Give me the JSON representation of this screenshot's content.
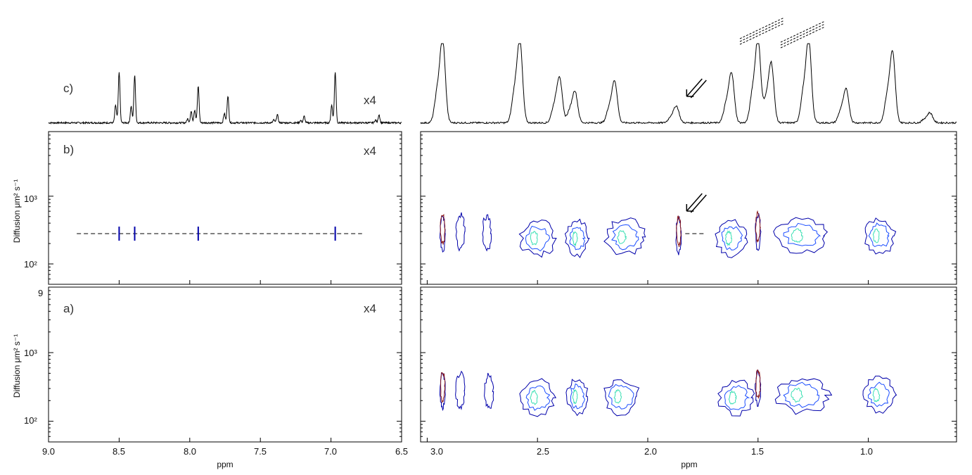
{
  "chart_data": {
    "type": "contour",
    "colors": {
      "axes": "#000000",
      "spectrum": "#000000",
      "contour_outer": "#0000aa",
      "contour_mid": "#1e50ff",
      "contour_inner": "#3ce0b4",
      "contour_peak": "#8b1a1a",
      "dashed": "#000000"
    },
    "panels": {
      "c": {
        "label": "c)",
        "scale_note": "x4",
        "description_type": "1D spectrum"
      },
      "b": {
        "label": "b)",
        "scale_note": "x4",
        "ylabel": "Diffusion μm² s⁻¹",
        "y_ticks": [
          "10³",
          "10²"
        ]
      },
      "a": {
        "label": "a)",
        "scale_note": "x4",
        "ylabel": "Diffusion μm² s⁻¹",
        "y_ticks": [
          "9",
          "10³",
          "10²"
        ]
      }
    },
    "left_region": {
      "xlim": [
        9.0,
        6.5
      ],
      "x_ticks": [
        "9.0",
        "8.5",
        "8.0",
        "7.5",
        "7.0",
        "6.5"
      ],
      "x_tick_values": [
        9.0,
        8.5,
        8.0,
        7.5,
        7.0,
        6.5
      ],
      "xlabel": "ppm",
      "peaks_ppm": [
        8.5,
        8.39,
        7.99,
        7.94,
        7.73,
        7.38,
        7.19,
        6.97,
        6.66
      ],
      "peak_heights": [
        0.62,
        0.58,
        0.14,
        0.45,
        0.33,
        0.1,
        0.08,
        0.62,
        0.1
      ],
      "dashed_diffusion": 280,
      "dashed_xrange": [
        8.8,
        6.78
      ]
    },
    "right_region": {
      "xlim": [
        3.03,
        0.6
      ],
      "x_ticks": [
        "3.0",
        "2.5",
        "2.0",
        "1.5",
        "1.0"
      ],
      "x_tick_values": [
        3.0,
        2.5,
        2.0,
        1.5,
        1.0
      ],
      "xlabel": "ppm",
      "peaks_ppm": [
        2.93,
        2.58,
        2.4,
        2.33,
        2.15,
        1.87,
        1.62,
        1.5,
        1.44,
        1.27,
        1.1,
        0.89,
        0.72
      ],
      "peak_heights": [
        1.0,
        1.0,
        0.55,
        0.38,
        0.5,
        0.2,
        0.6,
        1.0,
        0.72,
        1.0,
        0.4,
        0.85,
        0.12
      ],
      "arrow_ppm": 1.83,
      "dashed_diffusion": 280,
      "dashed_xrange": [
        1.83,
        1.74
      ],
      "diffusion_ylim": [
        50,
        9000
      ],
      "contours_b": [
        {
          "ppm": 2.93,
          "diff": 280,
          "spread": 0.012
        },
        {
          "ppm": 2.85,
          "diff": 300,
          "spread": 0.02
        },
        {
          "ppm": 2.73,
          "diff": 280,
          "spread": 0.02
        },
        {
          "ppm": 2.5,
          "diff": 240,
          "spread": 0.08
        },
        {
          "ppm": 2.32,
          "diff": 240,
          "spread": 0.05
        },
        {
          "ppm": 2.1,
          "diff": 250,
          "spread": 0.09
        },
        {
          "ppm": 1.86,
          "diff": 260,
          "spread": 0.012
        },
        {
          "ppm": 1.62,
          "diff": 240,
          "spread": 0.07
        },
        {
          "ppm": 1.5,
          "diff": 300,
          "spread": 0.012
        },
        {
          "ppm": 1.3,
          "diff": 260,
          "spread": 0.12
        },
        {
          "ppm": 0.95,
          "diff": 260,
          "spread": 0.07
        }
      ],
      "contours_a": [
        {
          "ppm": 2.93,
          "diff": 280,
          "spread": 0.012
        },
        {
          "ppm": 2.85,
          "diff": 280,
          "spread": 0.02
        },
        {
          "ppm": 2.72,
          "diff": 270,
          "spread": 0.02
        },
        {
          "ppm": 2.5,
          "diff": 220,
          "spread": 0.08
        },
        {
          "ppm": 2.32,
          "diff": 230,
          "spread": 0.05
        },
        {
          "ppm": 2.12,
          "diff": 230,
          "spread": 0.08
        },
        {
          "ppm": 1.6,
          "diff": 220,
          "spread": 0.08
        },
        {
          "ppm": 1.5,
          "diff": 300,
          "spread": 0.012
        },
        {
          "ppm": 1.3,
          "diff": 240,
          "spread": 0.12
        },
        {
          "ppm": 0.95,
          "diff": 240,
          "spread": 0.07
        }
      ]
    }
  }
}
